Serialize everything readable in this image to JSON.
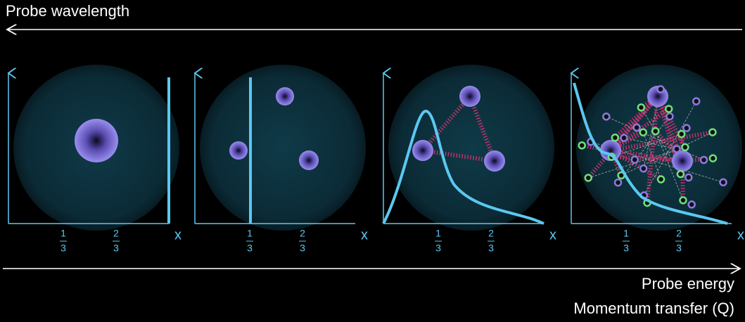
{
  "header": {
    "top_arrow_label": "Probe wavelength",
    "bottom_arrow_labels": [
      "Probe energy",
      "Momentum transfer (Q)"
    ]
  },
  "panels": [
    {
      "x_label": "x",
      "ticks": [
        {
          "num": "1",
          "den": "3"
        },
        {
          "num": "2",
          "den": "3"
        }
      ]
    },
    {
      "x_label": "x",
      "ticks": [
        {
          "num": "1",
          "den": "3"
        },
        {
          "num": "2",
          "den": "3"
        }
      ]
    },
    {
      "x_label": "x",
      "ticks": [
        {
          "num": "1",
          "den": "3"
        },
        {
          "num": "2",
          "den": "3"
        }
      ]
    },
    {
      "x_label": "x",
      "ticks": [
        {
          "num": "1",
          "den": "3"
        },
        {
          "num": "2",
          "den": "3"
        }
      ]
    }
  ]
}
